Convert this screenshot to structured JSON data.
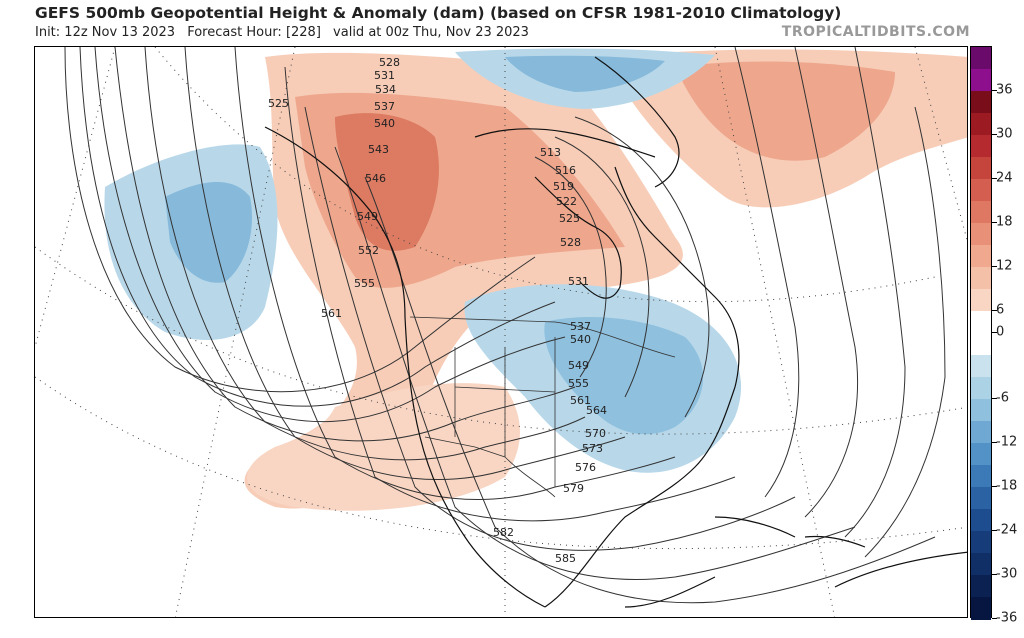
{
  "header": {
    "title": "GEFS 500mb Geopotential Height & Anomaly (dam) (based on CFSR 1981-2010 Climatology)",
    "init": "Init: 12z Nov 13 2023",
    "forecast_hour": "Forecast Hour: [228]",
    "valid": "valid at 00z Thu, Nov 23 2023",
    "brand": "TROPICALTIDBITS.COM"
  },
  "colorbar": {
    "units": "dam",
    "levels": [
      {
        "value": 39,
        "color": "#6a0a6a"
      },
      {
        "value": 36,
        "color": "#8e0f8e"
      },
      {
        "value": 33,
        "color": "#7a0d1a"
      },
      {
        "value": 30,
        "color": "#9c1a22"
      },
      {
        "value": 27,
        "color": "#b52a2e"
      },
      {
        "value": 24,
        "color": "#c5453d"
      },
      {
        "value": 21,
        "color": "#d45e4f"
      },
      {
        "value": 18,
        "color": "#df7862"
      },
      {
        "value": 15,
        "color": "#e99178"
      },
      {
        "value": 12,
        "color": "#f0a98f"
      },
      {
        "value": 9,
        "color": "#f5c0a8"
      },
      {
        "value": 6,
        "color": "#f9d6c4"
      },
      {
        "value": 3,
        "color": "#ffffff"
      },
      {
        "value": 0,
        "color": "#ffffff"
      },
      {
        "value": -3,
        "color": "#c9e2ee"
      },
      {
        "value": -6,
        "color": "#acd2e6"
      },
      {
        "value": -9,
        "color": "#8fc0de"
      },
      {
        "value": -12,
        "color": "#6fa9d3"
      },
      {
        "value": -15,
        "color": "#5392c6"
      },
      {
        "value": -18,
        "color": "#3b7ab6"
      },
      {
        "value": -21,
        "color": "#2a62a3"
      },
      {
        "value": -24,
        "color": "#1d4d8e"
      },
      {
        "value": -27,
        "color": "#163c79"
      },
      {
        "value": -30,
        "color": "#102f66"
      },
      {
        "value": -33,
        "color": "#0b2152"
      },
      {
        "value": -36,
        "color": "#071640"
      }
    ],
    "labels": [
      "36",
      "30",
      "24",
      "18",
      "12",
      "6",
      "0",
      "-6",
      "-12",
      "-18",
      "-24",
      "-30",
      "-36"
    ]
  },
  "map": {
    "contour_labels": [
      "528",
      "531",
      "534",
      "537",
      "540",
      "543",
      "546",
      "549",
      "552",
      "555",
      "561",
      "525",
      "513",
      "516",
      "519",
      "522",
      "525",
      "528",
      "531",
      "537",
      "540",
      "549",
      "555",
      "561",
      "564",
      "570",
      "573",
      "576",
      "579",
      "582",
      "585"
    ],
    "anomaly_centers": [
      {
        "sign": "negative",
        "region": "Gulf of Alaska / NE Pacific"
      },
      {
        "sign": "negative",
        "region": "Arctic Canada / Greenland"
      },
      {
        "sign": "negative",
        "region": "Eastern United States"
      },
      {
        "sign": "positive",
        "region": "Alaska / Western Canada"
      },
      {
        "sign": "positive",
        "region": "North Atlantic"
      },
      {
        "sign": "positive",
        "region": "Southwest United States"
      }
    ]
  }
}
